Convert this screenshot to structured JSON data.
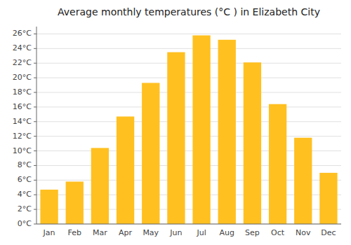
{
  "chart_data": {
    "type": "bar",
    "title": "Average monthly temperatures (°C ) in Elizabeth City",
    "categories": [
      "Jan",
      "Feb",
      "Mar",
      "Apr",
      "May",
      "Jun",
      "Jul",
      "Aug",
      "Sep",
      "Oct",
      "Nov",
      "Dec"
    ],
    "values": [
      4.7,
      5.8,
      10.4,
      14.7,
      19.3,
      23.5,
      25.8,
      25.2,
      22.1,
      16.4,
      11.8,
      7.0
    ],
    "color": "#FFC020",
    "ylim": [
      0,
      27
    ],
    "yticks": [
      {
        "value": 0,
        "label": "0°C"
      },
      {
        "value": 2,
        "label": "2°C"
      },
      {
        "value": 4,
        "label": "4°C"
      },
      {
        "value": 6,
        "label": "6°C"
      },
      {
        "value": 8,
        "label": "8°C"
      },
      {
        "value": 10,
        "label": "10°C"
      },
      {
        "value": 12,
        "label": "12°C"
      },
      {
        "value": 14,
        "label": "14°C"
      },
      {
        "value": 16,
        "label": "16°C"
      },
      {
        "value": 18,
        "label": "18°C"
      },
      {
        "value": 20,
        "label": "20°C"
      },
      {
        "value": 22,
        "label": "22°C"
      },
      {
        "value": 24,
        "label": "24°C"
      },
      {
        "value": 26,
        "label": "26°C"
      }
    ],
    "grid": true
  }
}
